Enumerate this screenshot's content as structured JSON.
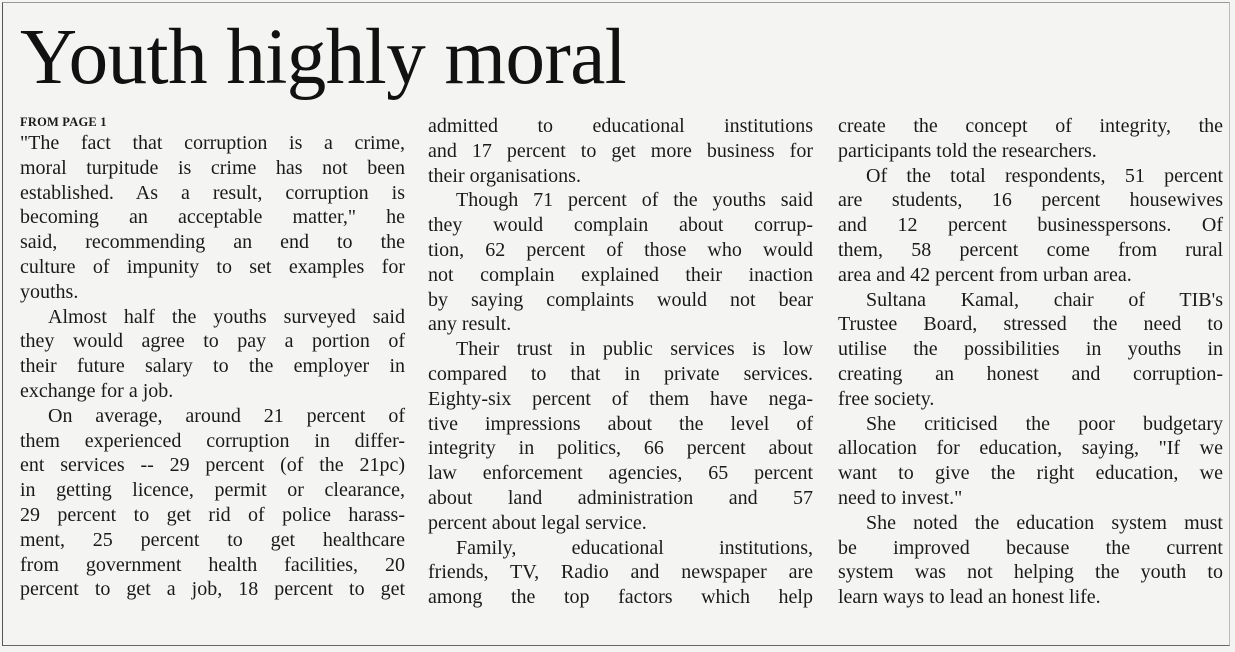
{
  "headline": "Youth highly moral",
  "kicker": "FROM PAGE 1",
  "columns": [
    [
      {
        "lines": [
          "\"The fact that corruption is a crime,",
          "moral turpitude is crime has not been",
          "established. As a result, corruption is",
          "becoming an acceptable matter,\" he",
          "said, recommending an end to the",
          "culture of impunity to set examples for",
          "youths."
        ]
      },
      {
        "lines": [
          "Almost half the youths surveyed said",
          "they would agree to pay a portion of",
          "their future salary to the employer in",
          "exchange for a job."
        ]
      },
      {
        "lines": [
          "On average, around 21 percent of",
          "them experienced corruption in differ-",
          "ent services -- 29 percent (of the 21pc)",
          "in getting licence, permit or clearance,",
          "29 percent to get rid of police harass-",
          "ment, 25 percent to get healthcare",
          "from government health facilities, 20",
          "percent to get a job, 18 percent to get"
        ]
      }
    ],
    [
      {
        "lines": [
          "admitted to educational institutions",
          "and 17 percent to get more business for",
          "their organisations."
        ]
      },
      {
        "lines": [
          "Though 71 percent of the youths said",
          "they would complain about corrup-",
          "tion, 62 percent of those who would",
          "not complain explained their inaction",
          "by saying complaints would not bear",
          "any result."
        ]
      },
      {
        "lines": [
          "Their trust in public services is low",
          "compared to that in private services.",
          "Eighty-six percent of them have nega-",
          "tive impressions about the level of",
          "integrity in politics, 66 percent about",
          "law enforcement agencies, 65 percent",
          "about land administration and 57",
          "percent about legal service."
        ]
      },
      {
        "lines": [
          "Family, educational institutions,",
          "friends, TV, Radio and newspaper are",
          "among the top factors which help"
        ]
      }
    ],
    [
      {
        "lines": [
          "create the concept of integrity, the",
          "participants told the researchers."
        ]
      },
      {
        "lines": [
          "Of the total respondents, 51 percent",
          "are students, 16 percent housewives",
          "and 12 percent businesspersons. Of",
          "them, 58 percent come from rural",
          "area and 42 percent from urban area."
        ]
      },
      {
        "lines": [
          "Sultana Kamal, chair of TIB's",
          "Trustee Board, stressed the need to",
          "utilise the possibilities in youths in",
          "creating an honest and corruption-",
          "free society."
        ]
      },
      {
        "lines": [
          "She criticised the poor budgetary",
          "allocation for education, saying, \"If we",
          "want to give the right education, we",
          "need to invest.\""
        ]
      },
      {
        "lines": [
          "She noted the education system must",
          "be improved because the current",
          "system was not helping the youth to",
          "learn ways to lead an honest life."
        ]
      }
    ]
  ]
}
